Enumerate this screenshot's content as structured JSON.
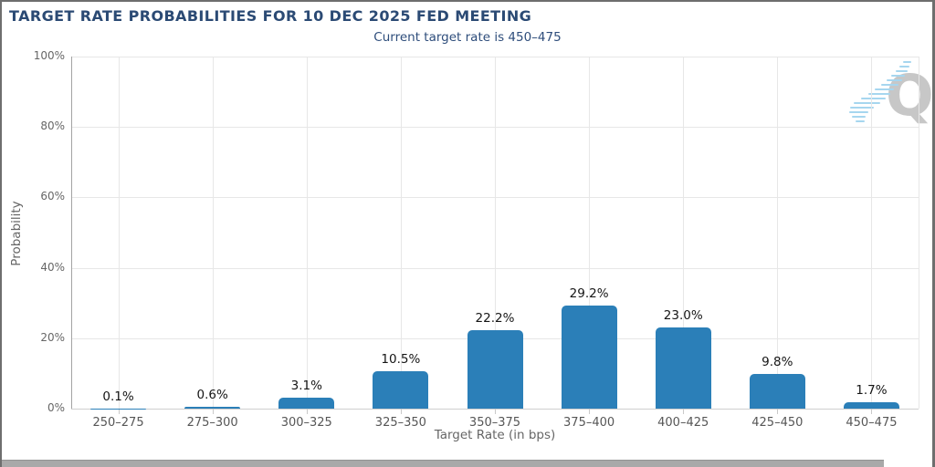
{
  "header": {
    "title": "TARGET RATE PROBABILITIES FOR 10 DEC 2025 FED MEETING",
    "subtitle": "Current target rate is 450–475"
  },
  "watermark": {
    "letter": "Q"
  },
  "colors": {
    "bar": "#2b7fb8",
    "title_navy": "#2b4a74",
    "watermark_gray": "#c7c7c7",
    "watermark_blue": "#a6d6ef"
  },
  "chart_data": {
    "type": "bar",
    "title": "TARGET RATE PROBABILITIES FOR 10 DEC 2025 FED MEETING",
    "subtitle": "Current target rate is 450–475",
    "categories": [
      "250–275",
      "275–300",
      "300–325",
      "325–350",
      "350–375",
      "375–400",
      "400–425",
      "425–450",
      "450–475"
    ],
    "values": [
      0.1,
      0.6,
      3.1,
      10.5,
      22.2,
      29.2,
      23.0,
      9.8,
      1.7
    ],
    "value_labels": [
      "0.1%",
      "0.6%",
      "3.1%",
      "10.5%",
      "22.2%",
      "29.2%",
      "23.0%",
      "9.8%",
      "1.7%"
    ],
    "xlabel": "Target Rate (in bps)",
    "ylabel": "Probability",
    "ylim": [
      0,
      100
    ],
    "yticks": [
      0,
      20,
      40,
      60,
      80,
      100
    ],
    "ytick_labels": [
      "0%",
      "20%",
      "40%",
      "60%",
      "80%",
      "100%"
    ],
    "grid": true,
    "legend": "none",
    "bar_color": "#2b7fb8"
  }
}
